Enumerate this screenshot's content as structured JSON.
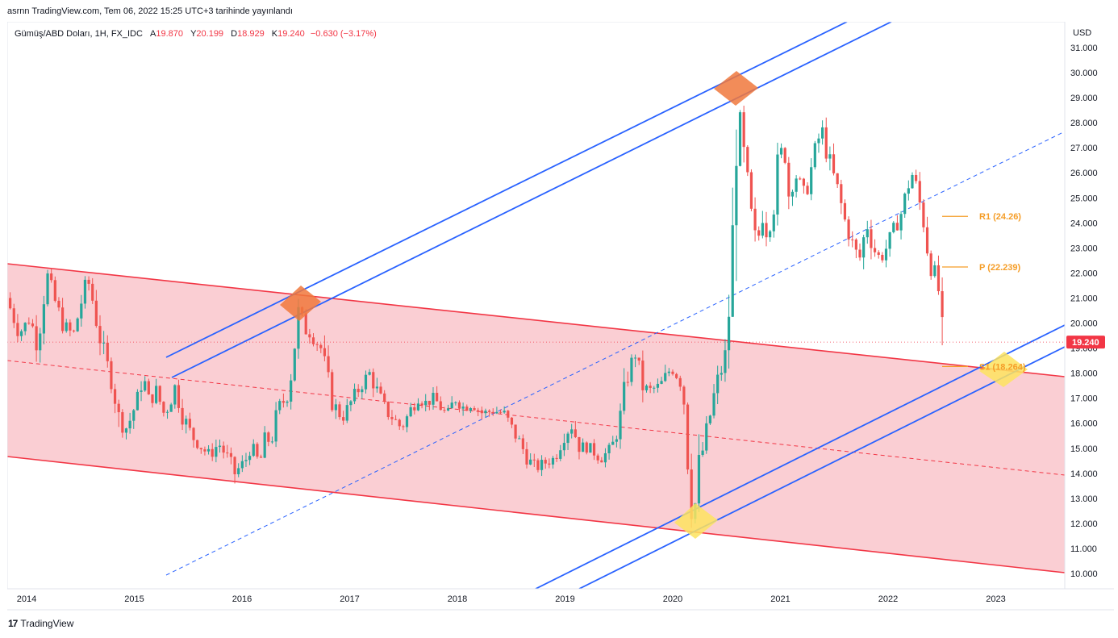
{
  "header": {
    "published": "asrnn TradingView.com, Tem 06, 2022 15:25 UTC+3 tarihinde yayınlandı"
  },
  "legend": {
    "symbol": "Gümüş/ABD Doları, 1H, FX_IDC",
    "open_label": "A",
    "open": "19.870",
    "high_label": "Y",
    "high": "20.199",
    "low_label": "D",
    "low": "18.929",
    "close_label": "K",
    "close": "19.240",
    "change": "−0.630 (−3.17%)"
  },
  "footer": {
    "brand": "TradingView",
    "logo_text": "17"
  },
  "colors": {
    "up": "#26a69a",
    "down": "#ef5350",
    "channel_fill": "#f7b3bc",
    "channel_line": "#f23645",
    "blue_line": "#2962ff",
    "pivot": "#f59d27",
    "highlight_orange": "#f0783c",
    "highlight_yellow": "#fde35f"
  },
  "chart_data": {
    "type": "candlestick",
    "title": "Gümüş/ABD Doları, 1H, FX_IDC",
    "currency": "USD",
    "y_ticks": [
      "31.000",
      "30.000",
      "29.000",
      "28.000",
      "27.000",
      "26.000",
      "25.000",
      "24.000",
      "23.000",
      "22.000",
      "21.000",
      "20.000",
      "19.000",
      "18.000",
      "17.000",
      "16.000",
      "15.000",
      "14.000",
      "13.000",
      "12.000",
      "11.000",
      "10.000"
    ],
    "x_ticks": [
      "2014",
      "2015",
      "2016",
      "2017",
      "2018",
      "2019",
      "2020",
      "2021",
      "2022",
      "2023"
    ],
    "ylim": [
      9.6,
      31.4
    ],
    "xlim": [
      2013.83,
      2023.65
    ],
    "last_price": "19.240",
    "last_value": 19.24,
    "pivots": [
      {
        "label": "R1 (24.26)",
        "value": 24.26
      },
      {
        "label": "P (22.239)",
        "value": 22.239
      },
      {
        "label": "S1 (18.264)",
        "value": 18.264
      }
    ],
    "path": [
      [
        2013.83,
        21.0
      ],
      [
        2013.95,
        19.6
      ],
      [
        2014.05,
        20.2
      ],
      [
        2014.12,
        19.1
      ],
      [
        2014.2,
        22.0
      ],
      [
        2014.27,
        21.0
      ],
      [
        2014.35,
        20.0
      ],
      [
        2014.45,
        19.5
      ],
      [
        2014.55,
        21.3
      ],
      [
        2014.6,
        21.6
      ],
      [
        2014.68,
        19.8
      ],
      [
        2014.72,
        19.0
      ],
      [
        2014.82,
        17.5
      ],
      [
        2014.88,
        16.0
      ],
      [
        2014.95,
        15.8
      ],
      [
        2015.0,
        16.4
      ],
      [
        2015.05,
        17.0
      ],
      [
        2015.1,
        18.0
      ],
      [
        2015.15,
        16.8
      ],
      [
        2015.22,
        17.3
      ],
      [
        2015.3,
        16.3
      ],
      [
        2015.4,
        17.5
      ],
      [
        2015.45,
        16.5
      ],
      [
        2015.55,
        15.5
      ],
      [
        2015.65,
        15.0
      ],
      [
        2015.72,
        14.7
      ],
      [
        2015.8,
        15.2
      ],
      [
        2015.9,
        14.5
      ],
      [
        2015.95,
        14.0
      ],
      [
        2016.05,
        14.5
      ],
      [
        2016.1,
        15.2
      ],
      [
        2016.18,
        14.3
      ],
      [
        2016.22,
        15.2
      ],
      [
        2016.3,
        15.4
      ],
      [
        2016.35,
        16.5
      ],
      [
        2016.45,
        17.2
      ],
      [
        2016.5,
        19.0
      ],
      [
        2016.55,
        20.6
      ],
      [
        2016.6,
        19.8
      ],
      [
        2016.65,
        19.6
      ],
      [
        2016.75,
        19.0
      ],
      [
        2016.8,
        18.0
      ],
      [
        2016.86,
        16.8
      ],
      [
        2016.95,
        16.2
      ],
      [
        2017.05,
        17.0
      ],
      [
        2017.12,
        17.5
      ],
      [
        2017.2,
        18.0
      ],
      [
        2017.28,
        17.2
      ],
      [
        2017.35,
        16.5
      ],
      [
        2017.42,
        16.2
      ],
      [
        2017.5,
        15.8
      ],
      [
        2017.58,
        16.5
      ],
      [
        2017.65,
        17.1
      ],
      [
        2017.72,
        16.8
      ],
      [
        2017.8,
        17.0
      ],
      [
        2017.92,
        16.3
      ],
      [
        2018.0,
        17.0
      ],
      [
        2018.08,
        16.6
      ],
      [
        2018.15,
        16.8
      ],
      [
        2018.25,
        16.4
      ],
      [
        2018.35,
        16.5
      ],
      [
        2018.45,
        16.4
      ],
      [
        2018.52,
        15.8
      ],
      [
        2018.6,
        15.2
      ],
      [
        2018.68,
        14.5
      ],
      [
        2018.75,
        14.2
      ],
      [
        2018.82,
        14.4
      ],
      [
        2018.92,
        14.6
      ],
      [
        2019.0,
        15.5
      ],
      [
        2019.08,
        15.9
      ],
      [
        2019.15,
        15.1
      ],
      [
        2019.25,
        15.0
      ],
      [
        2019.35,
        14.6
      ],
      [
        2019.45,
        15.0
      ],
      [
        2019.52,
        16.0
      ],
      [
        2019.6,
        18.0
      ],
      [
        2019.67,
        18.8
      ],
      [
        2019.73,
        17.5
      ],
      [
        2019.8,
        17.3
      ],
      [
        2019.9,
        17.5
      ],
      [
        2020.0,
        18.2
      ],
      [
        2020.08,
        17.8
      ],
      [
        2020.12,
        17.0
      ],
      [
        2020.17,
        14.0
      ],
      [
        2020.21,
        12.0
      ],
      [
        2020.25,
        14.0
      ],
      [
        2020.3,
        15.0
      ],
      [
        2020.35,
        16.0
      ],
      [
        2020.42,
        17.5
      ],
      [
        2020.5,
        18.5
      ],
      [
        2020.55,
        21.0
      ],
      [
        2020.58,
        24.0
      ],
      [
        2020.6,
        27.5
      ],
      [
        2020.63,
        29.0
      ],
      [
        2020.66,
        27.0
      ],
      [
        2020.7,
        26.0
      ],
      [
        2020.75,
        24.0
      ],
      [
        2020.8,
        23.0
      ],
      [
        2020.85,
        24.5
      ],
      [
        2020.9,
        23.5
      ],
      [
        2020.95,
        24.5
      ],
      [
        2021.0,
        26.5
      ],
      [
        2021.05,
        27.0
      ],
      [
        2021.1,
        25.0
      ],
      [
        2021.15,
        26.0
      ],
      [
        2021.25,
        25.0
      ],
      [
        2021.32,
        26.5
      ],
      [
        2021.4,
        27.8
      ],
      [
        2021.45,
        26.8
      ],
      [
        2021.5,
        26.0
      ],
      [
        2021.55,
        25.3
      ],
      [
        2021.62,
        24.0
      ],
      [
        2021.7,
        23.0
      ],
      [
        2021.75,
        22.5
      ],
      [
        2021.82,
        24.0
      ],
      [
        2021.88,
        23.0
      ],
      [
        2021.95,
        22.5
      ],
      [
        2022.0,
        23.0
      ],
      [
        2022.05,
        23.5
      ],
      [
        2022.1,
        24.0
      ],
      [
        2022.15,
        24.5
      ],
      [
        2022.2,
        25.5
      ],
      [
        2022.25,
        26.0
      ],
      [
        2022.3,
        25.0
      ],
      [
        2022.35,
        24.0
      ],
      [
        2022.4,
        22.5
      ],
      [
        2022.45,
        22.0
      ],
      [
        2022.5,
        21.0
      ],
      [
        2022.52,
        19.24
      ]
    ]
  }
}
